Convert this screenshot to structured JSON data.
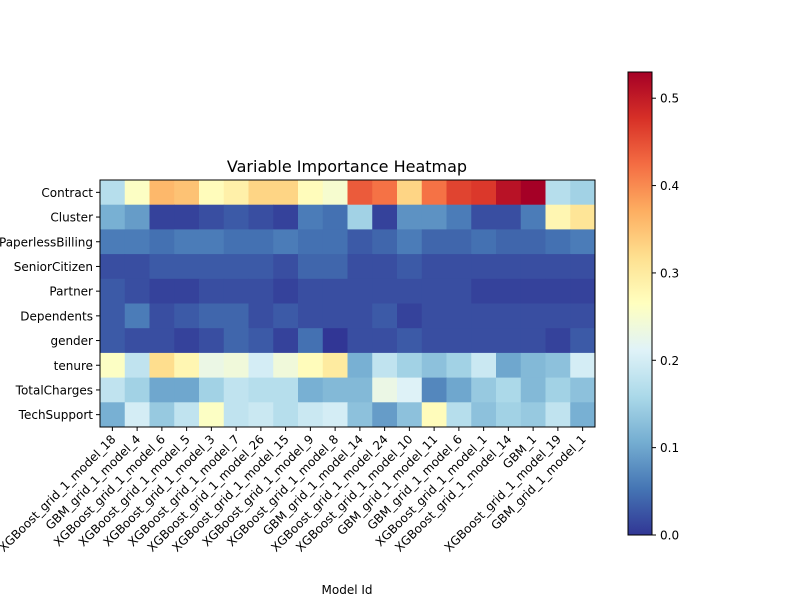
{
  "chart_data": {
    "type": "heatmap",
    "title": "Variable Importance Heatmap",
    "xlabel": "Model Id",
    "ylabel": "",
    "x_categories": [
      "XGBoost_grid_1_model_18",
      "GBM_grid_1_model_4",
      "XGBoost_grid_1_model_6",
      "XGBoost_grid_1_model_5",
      "XGBoost_grid_1_model_3",
      "XGBoost_grid_1_model_7",
      "XGBoost_grid_1_model_26",
      "XGBoost_grid_1_model_15",
      "XGBoost_grid_1_model_9",
      "XGBoost_grid_1_model_8",
      "GBM_grid_1_model_14",
      "XGBoost_grid_1_model_24",
      "XGBoost_grid_1_model_10",
      "GBM_grid_1_model_11",
      "GBM_grid_1_model_6",
      "XGBoost_grid_1_model_1",
      "XGBoost_grid_1_model_14",
      "GBM_1",
      "XGBoost_grid_1_model_19",
      "GBM_grid_1_model_1"
    ],
    "y_categories": [
      "Contract",
      "Cluster",
      "PaperlessBilling",
      "SeniorCitizen",
      "Partner",
      "Dependents",
      "gender",
      "tenure",
      "TotalCharges",
      "TechSupport"
    ],
    "values": [
      [
        0.17,
        0.26,
        0.36,
        0.35,
        0.27,
        0.29,
        0.33,
        0.33,
        0.27,
        0.25,
        0.44,
        0.42,
        0.33,
        0.42,
        0.46,
        0.47,
        0.51,
        0.53,
        0.17,
        0.15
      ],
      [
        0.11,
        0.09,
        0.01,
        0.01,
        0.02,
        0.03,
        0.02,
        0.01,
        0.06,
        0.05,
        0.15,
        0.01,
        0.08,
        0.08,
        0.06,
        0.02,
        0.02,
        0.06,
        0.28,
        0.31
      ],
      [
        0.06,
        0.06,
        0.05,
        0.06,
        0.06,
        0.05,
        0.05,
        0.06,
        0.05,
        0.05,
        0.03,
        0.04,
        0.06,
        0.04,
        0.04,
        0.05,
        0.04,
        0.04,
        0.05,
        0.06
      ],
      [
        0.02,
        0.02,
        0.03,
        0.03,
        0.03,
        0.03,
        0.03,
        0.02,
        0.04,
        0.04,
        0.02,
        0.02,
        0.03,
        0.02,
        0.02,
        0.02,
        0.02,
        0.02,
        0.02,
        0.02
      ],
      [
        0.03,
        0.02,
        0.01,
        0.01,
        0.02,
        0.02,
        0.02,
        0.01,
        0.02,
        0.02,
        0.02,
        0.02,
        0.02,
        0.02,
        0.02,
        0.01,
        0.01,
        0.01,
        0.01,
        0.01
      ],
      [
        0.03,
        0.06,
        0.02,
        0.03,
        0.04,
        0.04,
        0.02,
        0.03,
        0.02,
        0.02,
        0.02,
        0.03,
        0.01,
        0.02,
        0.02,
        0.02,
        0.02,
        0.02,
        0.02,
        0.02
      ],
      [
        0.03,
        0.02,
        0.02,
        0.01,
        0.02,
        0.04,
        0.03,
        0.01,
        0.05,
        0.0,
        0.02,
        0.02,
        0.03,
        0.02,
        0.02,
        0.02,
        0.02,
        0.02,
        0.01,
        0.03
      ],
      [
        0.26,
        0.18,
        0.32,
        0.28,
        0.23,
        0.24,
        0.2,
        0.24,
        0.27,
        0.3,
        0.11,
        0.18,
        0.15,
        0.13,
        0.15,
        0.19,
        0.1,
        0.12,
        0.13,
        0.2
      ],
      [
        0.18,
        0.15,
        0.1,
        0.1,
        0.15,
        0.18,
        0.17,
        0.17,
        0.11,
        0.12,
        0.12,
        0.23,
        0.21,
        0.07,
        0.1,
        0.14,
        0.16,
        0.12,
        0.15,
        0.13
      ],
      [
        0.11,
        0.2,
        0.14,
        0.18,
        0.26,
        0.18,
        0.19,
        0.17,
        0.19,
        0.2,
        0.13,
        0.09,
        0.13,
        0.27,
        0.17,
        0.13,
        0.15,
        0.14,
        0.18,
        0.11
      ]
    ],
    "colorbar": {
      "colormap": "RdYlBu_r",
      "range": [
        0,
        0.53
      ],
      "ticks": [
        0.0,
        0.1,
        0.2,
        0.3,
        0.4,
        0.5
      ],
      "tick_labels": [
        "0.0",
        "0.1",
        "0.2",
        "0.3",
        "0.4",
        "0.5"
      ]
    },
    "grid": false,
    "legend": "colorbar-right"
  }
}
